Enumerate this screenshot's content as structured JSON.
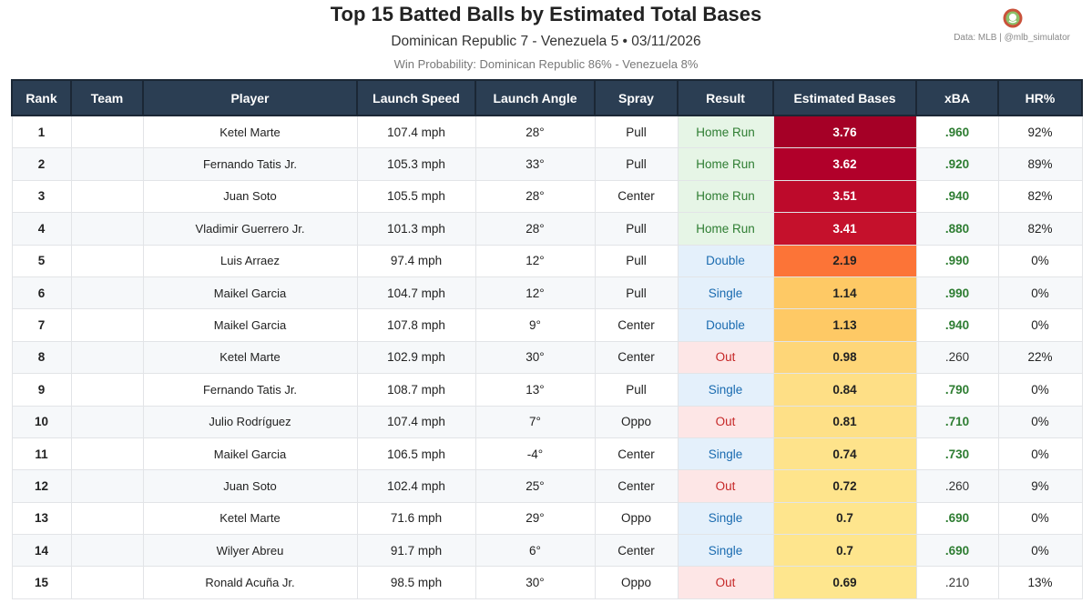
{
  "header": {
    "title": "Top 15 Batted Balls by Estimated Total Bases",
    "subtitle": "Dominican Republic 7 - Venezuela 5  •  03/11/2026",
    "win_probability": "Win Probability: Dominican Republic 86% - Venezuela 8%",
    "credit": "Data: MLB  |  @mlb_simulator"
  },
  "colors": {
    "header_bg": "#2b3e53",
    "home_run_bg": "#e6f5e6",
    "hit_bg": "#e4f0fb",
    "out_bg": "#fde6e6",
    "good_xba": "#2e7d32"
  },
  "table": {
    "columns": [
      "Rank",
      "Team",
      "Player",
      "Launch Speed",
      "Launch Angle",
      "Spray",
      "Result",
      "Estimated Bases",
      "xBA",
      "HR%"
    ],
    "rows": [
      {
        "rank": "1",
        "player": "Ketel Marte",
        "speed": "107.4 mph",
        "angle": "28°",
        "spray": "Pull",
        "result": "Home Run",
        "est": "3.76",
        "xba": ".960",
        "hr": "92%",
        "kind": "hr",
        "good": true,
        "bg": "#a50026",
        "fg": "#ffffff"
      },
      {
        "rank": "2",
        "player": "Fernando Tatis Jr.",
        "speed": "105.3 mph",
        "angle": "33°",
        "spray": "Pull",
        "result": "Home Run",
        "est": "3.62",
        "xba": ".920",
        "hr": "89%",
        "kind": "hr",
        "good": true,
        "bg": "#b1002a",
        "fg": "#ffffff"
      },
      {
        "rank": "3",
        "player": "Juan Soto",
        "speed": "105.5 mph",
        "angle": "28°",
        "spray": "Center",
        "result": "Home Run",
        "est": "3.51",
        "xba": ".940",
        "hr": "82%",
        "kind": "hr",
        "good": true,
        "bg": "#bd0a2b",
        "fg": "#ffffff"
      },
      {
        "rank": "4",
        "player": "Vladimir Guerrero Jr.",
        "speed": "101.3 mph",
        "angle": "28°",
        "spray": "Pull",
        "result": "Home Run",
        "est": "3.41",
        "xba": ".880",
        "hr": "82%",
        "kind": "hr",
        "good": true,
        "bg": "#c5112c",
        "fg": "#ffffff"
      },
      {
        "rank": "5",
        "player": "Luis Arraez",
        "speed": "97.4 mph",
        "angle": "12°",
        "spray": "Pull",
        "result": "Double",
        "est": "2.19",
        "xba": ".990",
        "hr": "0%",
        "kind": "hit",
        "good": true,
        "bg": "#fc7437",
        "fg": "#222222"
      },
      {
        "rank": "6",
        "player": "Maikel Garcia",
        "speed": "104.7 mph",
        "angle": "12°",
        "spray": "Pull",
        "result": "Single",
        "est": "1.14",
        "xba": ".990",
        "hr": "0%",
        "kind": "hit",
        "good": true,
        "bg": "#fec965",
        "fg": "#222222"
      },
      {
        "rank": "7",
        "player": "Maikel Garcia",
        "speed": "107.8 mph",
        "angle": "9°",
        "spray": "Center",
        "result": "Double",
        "est": "1.13",
        "xba": ".940",
        "hr": "0%",
        "kind": "hit",
        "good": true,
        "bg": "#fec965",
        "fg": "#222222"
      },
      {
        "rank": "8",
        "player": "Ketel Marte",
        "speed": "102.9 mph",
        "angle": "30°",
        "spray": "Center",
        "result": "Out",
        "est": "0.98",
        "xba": ".260",
        "hr": "22%",
        "kind": "out",
        "good": false,
        "bg": "#fed678",
        "fg": "#222222"
      },
      {
        "rank": "9",
        "player": "Fernando Tatis Jr.",
        "speed": "108.7 mph",
        "angle": "13°",
        "spray": "Pull",
        "result": "Single",
        "est": "0.84",
        "xba": ".790",
        "hr": "0%",
        "kind": "hit",
        "good": true,
        "bg": "#fedf86",
        "fg": "#222222"
      },
      {
        "rank": "10",
        "player": "Julio Rodríguez",
        "speed": "107.4 mph",
        "angle": "7°",
        "spray": "Oppo",
        "result": "Out",
        "est": "0.81",
        "xba": ".710",
        "hr": "0%",
        "kind": "out",
        "good": true,
        "bg": "#fee087",
        "fg": "#222222"
      },
      {
        "rank": "11",
        "player": "Maikel Garcia",
        "speed": "106.5 mph",
        "angle": "-4°",
        "spray": "Center",
        "result": "Single",
        "est": "0.74",
        "xba": ".730",
        "hr": "0%",
        "kind": "hit",
        "good": true,
        "bg": "#fee38b",
        "fg": "#222222"
      },
      {
        "rank": "12",
        "player": "Juan Soto",
        "speed": "102.4 mph",
        "angle": "25°",
        "spray": "Center",
        "result": "Out",
        "est": "0.72",
        "xba": ".260",
        "hr": "9%",
        "kind": "out",
        "good": false,
        "bg": "#fee48c",
        "fg": "#222222"
      },
      {
        "rank": "13",
        "player": "Ketel Marte",
        "speed": "71.6 mph",
        "angle": "29°",
        "spray": "Oppo",
        "result": "Single",
        "est": "0.7",
        "xba": ".690",
        "hr": "0%",
        "kind": "hit",
        "good": true,
        "bg": "#fee58d",
        "fg": "#222222"
      },
      {
        "rank": "14",
        "player": "Wilyer Abreu",
        "speed": "91.7 mph",
        "angle": "6°",
        "spray": "Center",
        "result": "Single",
        "est": "0.7",
        "xba": ".690",
        "hr": "0%",
        "kind": "hit",
        "good": true,
        "bg": "#fee58d",
        "fg": "#222222"
      },
      {
        "rank": "15",
        "player": "Ronald Acuña Jr.",
        "speed": "98.5 mph",
        "angle": "30°",
        "spray": "Oppo",
        "result": "Out",
        "est": "0.69",
        "xba": ".210",
        "hr": "13%",
        "kind": "out",
        "good": false,
        "bg": "#fee68e",
        "fg": "#222222"
      }
    ]
  }
}
